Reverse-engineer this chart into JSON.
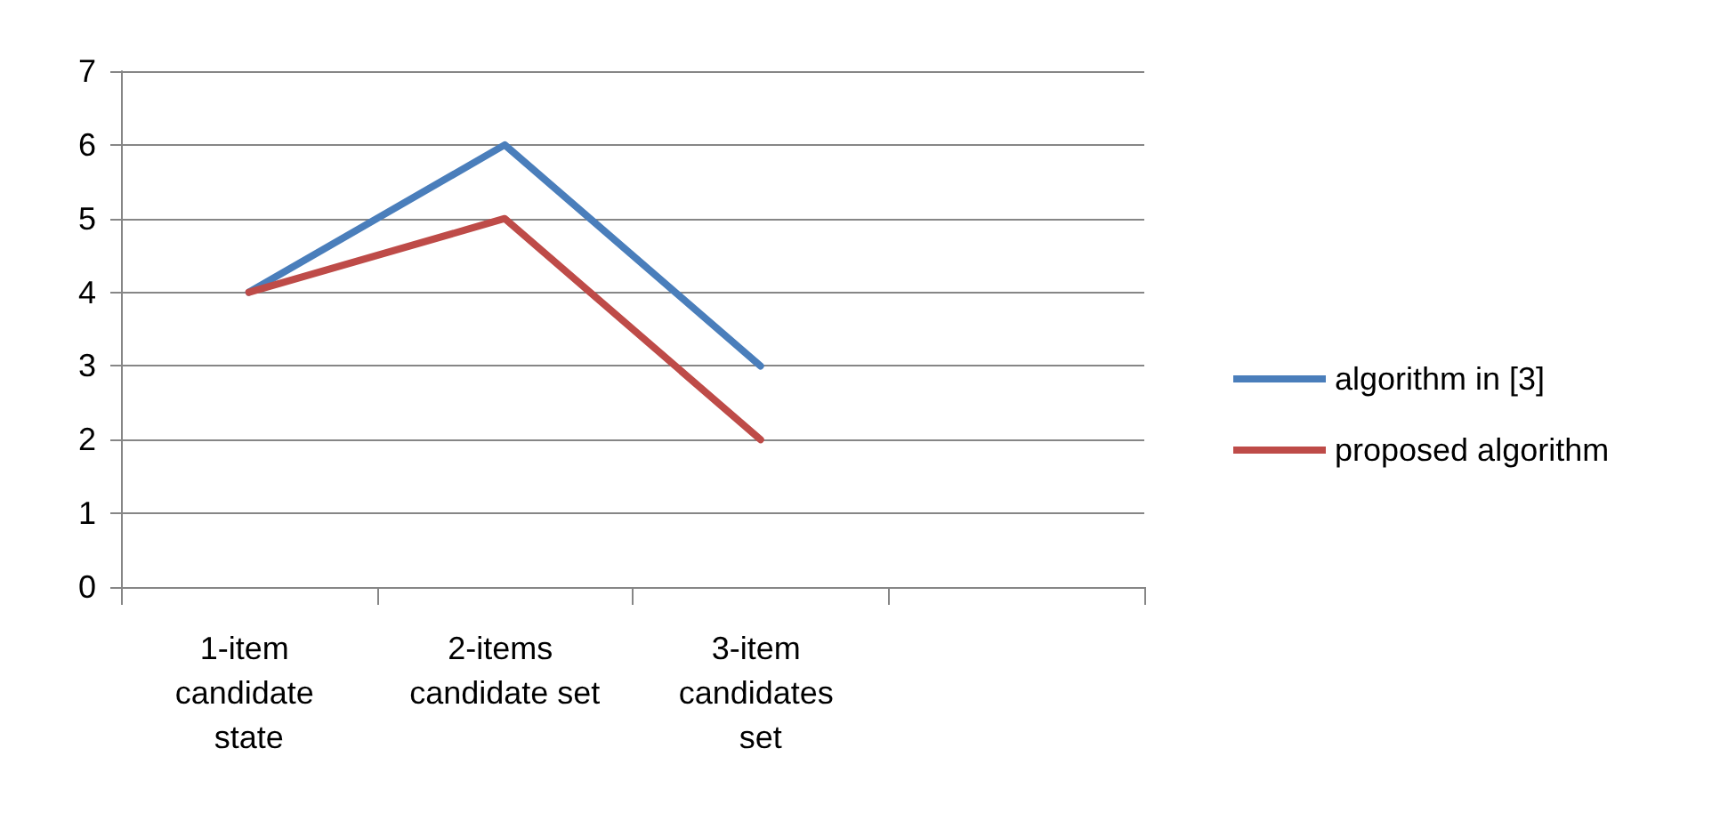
{
  "chart_data": {
    "type": "line",
    "categories": [
      "1-item candidate state",
      "2-items candidate set",
      "3-item candidates set",
      null
    ],
    "series": [
      {
        "name": "algorithm in [3]",
        "color": "#4a7ebb",
        "values": [
          4,
          6,
          3,
          null
        ]
      },
      {
        "name": "proposed algorithm",
        "color": "#be4b48",
        "values": [
          4,
          5,
          2,
          null
        ]
      }
    ],
    "ylim": [
      0,
      7
    ],
    "yticks": [
      0,
      1,
      2,
      3,
      4,
      5,
      6,
      7
    ],
    "grid": "y",
    "legend": "right",
    "marker": "none",
    "line_style": "solid"
  }
}
